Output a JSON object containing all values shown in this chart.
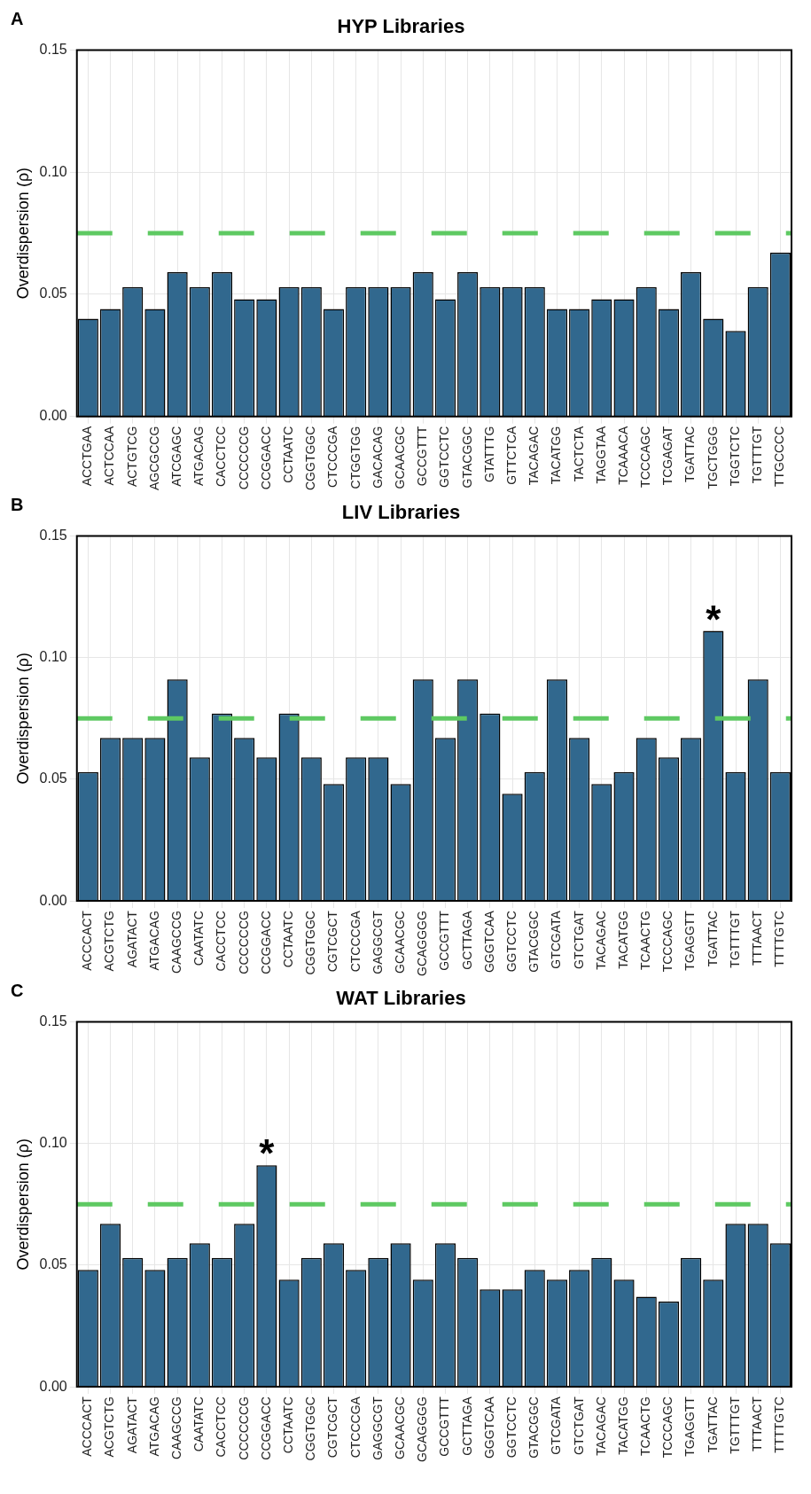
{
  "chart_data": [
    {
      "type": "bar",
      "title": "HYP Libraries",
      "ylabel": "Overdispersion (ρ)",
      "annotations": [
        "A"
      ],
      "categories": [
        "ACCTGAA",
        "ACTCCAA",
        "ACTGTCG",
        "AGCGCCG",
        "ATCGAGC",
        "ATGACAG",
        "CACCTCC",
        "CCCCCCG",
        "CCGGACC",
        "CCTAATC",
        "CGGTGGC",
        "CTCCCGA",
        "CTGGTGG",
        "GACACAG",
        "GCAACGC",
        "GCCGTTT",
        "GGTCCTC",
        "GTACGGC",
        "GTATTTG",
        "GTTCTCA",
        "TACAGAC",
        "TACATGG",
        "TACTCTA",
        "TAGGTAA",
        "TCAAACA",
        "TCCCAGC",
        "TCGAGAT",
        "TGATTAC",
        "TGCTGGG",
        "TGGTCTC",
        "TGTTTGT",
        "TTGCCCC"
      ],
      "values": [
        0.04,
        0.044,
        0.053,
        0.044,
        0.059,
        0.053,
        0.059,
        0.048,
        0.048,
        0.053,
        0.053,
        0.044,
        0.053,
        0.053,
        0.053,
        0.059,
        0.048,
        0.059,
        0.053,
        0.053,
        0.053,
        0.044,
        0.044,
        0.048,
        0.048,
        0.053,
        0.044,
        0.059,
        0.04,
        0.035,
        0.053,
        0.067
      ],
      "color": "#31688e",
      "ylim": [
        0,
        0.15
      ],
      "yticks": [
        {
          "value": 0,
          "label": "0.00"
        },
        {
          "value": 0.05,
          "label": "0.05"
        },
        {
          "value": 0.1,
          "label": "0.10"
        },
        {
          "value": 0.15,
          "label": "0.15"
        }
      ],
      "grid": true,
      "ref_lines": [
        {
          "axis": "y",
          "value": 0.075,
          "color": "#5ec962",
          "line_style": "dashed"
        }
      ]
    },
    {
      "type": "bar",
      "title": "LIV Libraries",
      "ylabel": "Overdispersion (ρ)",
      "annotations": [
        "B",
        {
          "text": "*",
          "x": "TGATTAC",
          "y": 0.111
        }
      ],
      "categories": [
        "ACCCACT",
        "ACGTCTG",
        "AGATACT",
        "ATGACAG",
        "CAAGCCG",
        "CAATATC",
        "CACCTCC",
        "CCCCCCG",
        "CCGGACC",
        "CCTAATC",
        "CGGTGGC",
        "CGTCGCT",
        "CTCCCGA",
        "GAGGCGT",
        "GCAACGC",
        "GCAGGGG",
        "GCCGTTT",
        "GCTTAGA",
        "GGGTCAA",
        "GGTCCTC",
        "GTACGGC",
        "GTCGATA",
        "GTCTGAT",
        "TACAGAC",
        "TACATGG",
        "TCAACTG",
        "TCCCAGC",
        "TGAGGTT",
        "TGATTAC",
        "TGTTTGT",
        "TTTAACT",
        "TTTTGTC"
      ],
      "values": [
        0.053,
        0.067,
        0.067,
        0.067,
        0.091,
        0.059,
        0.077,
        0.067,
        0.059,
        0.077,
        0.059,
        0.048,
        0.059,
        0.059,
        0.048,
        0.091,
        0.067,
        0.091,
        0.077,
        0.044,
        0.053,
        0.091,
        0.067,
        0.048,
        0.053,
        0.067,
        0.059,
        0.067,
        0.111,
        0.053,
        0.091,
        0.053
      ],
      "color": "#31688e",
      "ylim": [
        0,
        0.15
      ],
      "yticks": [
        {
          "value": 0,
          "label": "0.00"
        },
        {
          "value": 0.05,
          "label": "0.05"
        },
        {
          "value": 0.1,
          "label": "0.10"
        },
        {
          "value": 0.15,
          "label": "0.15"
        }
      ],
      "grid": true,
      "ref_lines": [
        {
          "axis": "y",
          "value": 0.075,
          "color": "#5ec962",
          "line_style": "dashed"
        }
      ]
    },
    {
      "type": "bar",
      "title": "WAT Libraries",
      "ylabel": "Overdispersion (ρ)",
      "annotations": [
        "C",
        {
          "text": "*",
          "x": "CCGGACC",
          "y": 0.091
        }
      ],
      "categories": [
        "ACCCACT",
        "ACGTCTG",
        "AGATACT",
        "ATGACAG",
        "CAAGCCG",
        "CAATATC",
        "CACCTCC",
        "CCCCCCG",
        "CCGGACC",
        "CCTAATC",
        "CGGTGGC",
        "CGTCGCT",
        "CTCCCGA",
        "GAGGCGT",
        "GCAACGC",
        "GCAGGGG",
        "GCCGTTT",
        "GCTTAGA",
        "GGGTCAA",
        "GGTCCTC",
        "GTACGGC",
        "GTCGATA",
        "GTCTGAT",
        "TACAGAC",
        "TACATGG",
        "TCAACTG",
        "TCCCAGC",
        "TGAGGTT",
        "TGATTAC",
        "TGTTTGT",
        "TTTAACT",
        "TTTTGTC"
      ],
      "values": [
        0.048,
        0.067,
        0.053,
        0.048,
        0.053,
        0.059,
        0.053,
        0.067,
        0.091,
        0.044,
        0.053,
        0.059,
        0.048,
        0.053,
        0.059,
        0.044,
        0.059,
        0.053,
        0.04,
        0.04,
        0.048,
        0.044,
        0.048,
        0.053,
        0.044,
        0.037,
        0.035,
        0.053,
        0.044,
        0.067,
        0.067,
        0.059
      ],
      "color": "#31688e",
      "ylim": [
        0,
        0.15
      ],
      "yticks": [
        {
          "value": 0,
          "label": "0.00"
        },
        {
          "value": 0.05,
          "label": "0.05"
        },
        {
          "value": 0.1,
          "label": "0.10"
        },
        {
          "value": 0.15,
          "label": "0.15"
        }
      ],
      "grid": true,
      "ref_lines": [
        {
          "axis": "y",
          "value": 0.075,
          "color": "#5ec962",
          "line_style": "dashed"
        }
      ]
    }
  ]
}
